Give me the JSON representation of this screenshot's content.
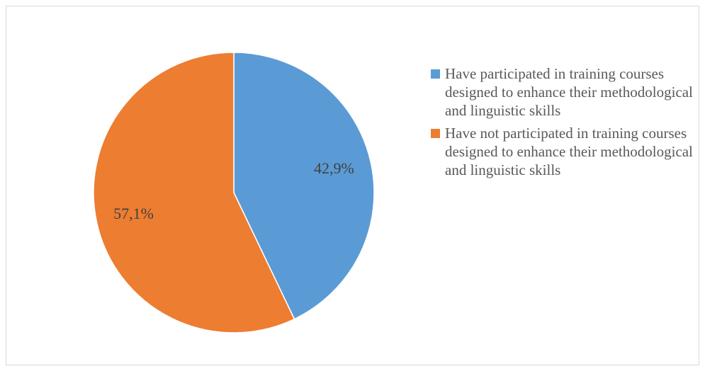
{
  "chart_data": {
    "type": "pie",
    "categories": [
      "Have participated in training courses designed to enhance their methodological and linguistic skills",
      "Have not participated in training courses designed to enhance their methodological and linguistic skills"
    ],
    "values": [
      42.9,
      57.1
    ],
    "value_labels": [
      "42,9%",
      "57,1%"
    ],
    "colors": [
      "#5b9bd5",
      "#ed7d31"
    ],
    "legend": "right"
  }
}
